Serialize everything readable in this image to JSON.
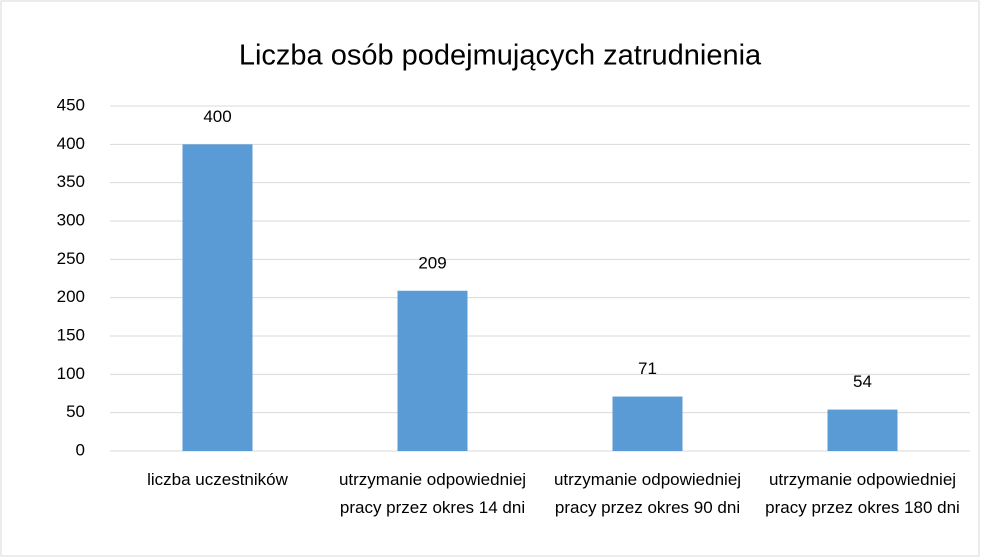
{
  "chart_data": {
    "type": "bar",
    "title": "Liczba osób podejmujących zatrudnienia",
    "categories": [
      "liczba uczestników",
      "utrzymanie odpowiedniej pracy przez okres 14 dni",
      "utrzymanie odpowiedniej pracy przez okres 90 dni",
      "utrzymanie odpowiedniej pracy przez okres 180 dni"
    ],
    "values": [
      400,
      209,
      71,
      54
    ],
    "color": "#5b9bd5",
    "ylim": [
      0,
      450
    ],
    "yticks": [
      0,
      50,
      100,
      150,
      200,
      250,
      300,
      350,
      400,
      450
    ],
    "grid": true
  }
}
